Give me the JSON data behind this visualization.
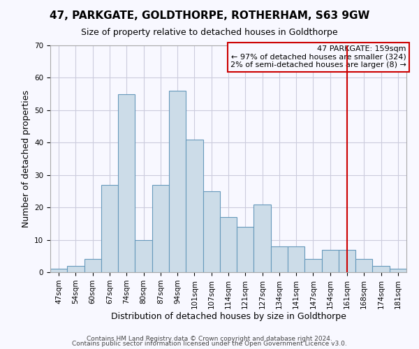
{
  "title": "47, PARKGATE, GOLDTHORPE, ROTHERHAM, S63 9GW",
  "subtitle": "Size of property relative to detached houses in Goldthorpe",
  "xlabel": "Distribution of detached houses by size in Goldthorpe",
  "ylabel": "Number of detached properties",
  "bin_labels": [
    "47sqm",
    "54sqm",
    "60sqm",
    "67sqm",
    "74sqm",
    "80sqm",
    "87sqm",
    "94sqm",
    "101sqm",
    "107sqm",
    "114sqm",
    "121sqm",
    "127sqm",
    "134sqm",
    "141sqm",
    "147sqm",
    "154sqm",
    "161sqm",
    "168sqm",
    "174sqm",
    "181sqm"
  ],
  "values": [
    1,
    2,
    4,
    27,
    55,
    10,
    27,
    56,
    41,
    25,
    17,
    14,
    21,
    8,
    8,
    4,
    7,
    7,
    4,
    2,
    1
  ],
  "bar_color": "#ccdce8",
  "bar_edgecolor": "#6699bb",
  "vline_color": "#cc0000",
  "vline_bin_index": 17,
  "annotation_text": "47 PARKGATE: 159sqm\n← 97% of detached houses are smaller (324)\n2% of semi-detached houses are larger (8) →",
  "annotation_box_edgecolor": "#cc0000",
  "ylim": [
    0,
    70
  ],
  "yticks": [
    0,
    10,
    20,
    30,
    40,
    50,
    60,
    70
  ],
  "grid_color": "#ccccdd",
  "background_color": "#f8f8ff",
  "title_fontsize": 11,
  "subtitle_fontsize": 9,
  "ylabel_fontsize": 9,
  "xlabel_fontsize": 9,
  "tick_fontsize": 7.5,
  "annot_fontsize": 8,
  "footer1": "Contains HM Land Registry data © Crown copyright and database right 2024.",
  "footer2": "Contains public sector information licensed under the Open Government Licence v3.0.",
  "footer_fontsize": 6.5
}
